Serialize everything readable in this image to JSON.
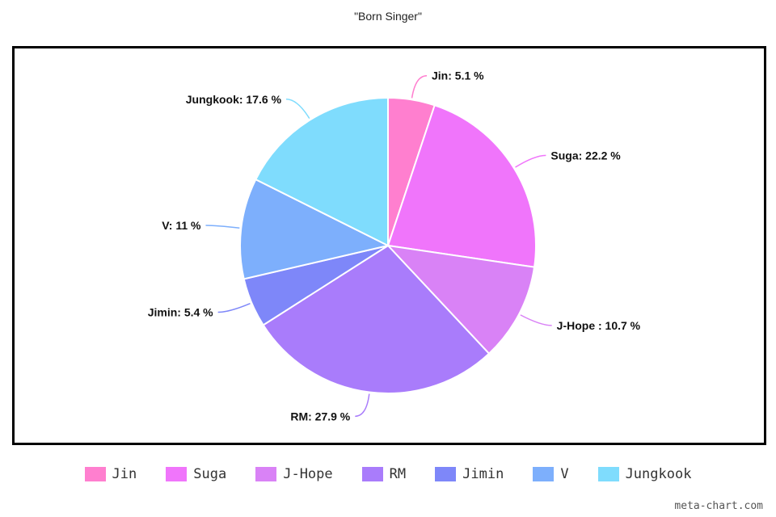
{
  "chart_data": {
    "type": "pie",
    "title": "\"Born Singer\"",
    "slices": [
      {
        "name": "Jin",
        "value": 5.1,
        "label": "Jin: 5.1 %",
        "color": "#ff7fcf"
      },
      {
        "name": "Suga",
        "value": 22.2,
        "label": "Suga: 22.2 %",
        "color": "#f075fb"
      },
      {
        "name": "J-Hope",
        "value": 10.7,
        "label": "J-Hope : 10.7 %",
        "color": "#d982f6"
      },
      {
        "name": "RM",
        "value": 27.9,
        "label": "RM: 27.9 %",
        "color": "#a97cfb"
      },
      {
        "name": "Jimin",
        "value": 5.4,
        "label": "Jimin: 5.4 %",
        "color": "#7e87f9"
      },
      {
        "name": "V",
        "value": 11,
        "label": "V: 11 %",
        "color": "#7daffc"
      },
      {
        "name": "Jungkook",
        "value": 17.6,
        "label": "Jungkook: 17.6 %",
        "color": "#7fdcfd"
      }
    ],
    "legend_position": "bottom"
  },
  "credit": "meta-chart.com"
}
